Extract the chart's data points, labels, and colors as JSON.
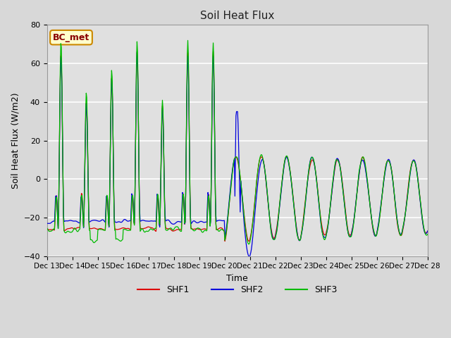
{
  "title": "Soil Heat Flux",
  "xlabel": "Time",
  "ylabel": "Soil Heat Flux (W/m2)",
  "ylim": [
    -40,
    80
  ],
  "yticks": [
    -40,
    -20,
    0,
    20,
    40,
    60,
    80
  ],
  "fig_bg_color": "#d8d8d8",
  "plot_bg_color": "#e0e0e0",
  "grid_color": "#ffffff",
  "shf1_color": "#dd0000",
  "shf2_color": "#0000dd",
  "shf3_color": "#00bb00",
  "legend_labels": [
    "SHF1",
    "SHF2",
    "SHF3"
  ],
  "annotation_text": "BC_met",
  "annotation_bg": "#ffffcc",
  "annotation_border": "#cc8800",
  "annotation_text_color": "#880000",
  "x_tick_labels": [
    "Dec 13",
    "Dec 14",
    "Dec 15",
    "Dec 16",
    "Dec 17",
    "Dec 18",
    "Dec 19",
    "Dec 20",
    "Dec 21",
    "Dec 22",
    "Dec 23",
    "Dec 24",
    "Dec 25",
    "Dec 26",
    "Dec 27",
    "Dec 28"
  ],
  "n_points": 720
}
